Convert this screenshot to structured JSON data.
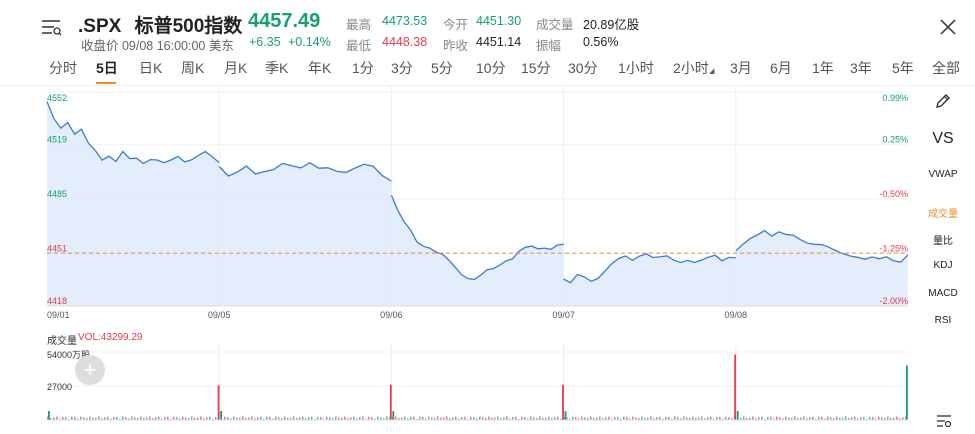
{
  "header": {
    "symbol": ".SPX",
    "name": "标普500指数",
    "price": "4457.49",
    "status": "收盘价 09/08 16:00:00 美东",
    "change": "+6.35",
    "change_pct": "+0.14%",
    "stats": {
      "high_label": "最高",
      "high": "4473.53",
      "open_label": "今开",
      "open": "4451.30",
      "volume_label": "成交量",
      "volume": "20.89亿股",
      "low_label": "最低",
      "low": "4448.38",
      "prev_close_label": "昨收",
      "prev_close": "4451.14",
      "amplitude_label": "振幅",
      "amplitude": "0.56%"
    }
  },
  "tabs": [
    "分时",
    "5日",
    "日K",
    "周K",
    "月K",
    "季K",
    "年K",
    "1分",
    "3分",
    "5分",
    "10分",
    "15分",
    "30分",
    "1小时",
    "2小时",
    "3月",
    "6月",
    "1年",
    "3年",
    "5年",
    "全部"
  ],
  "active_tab": "5日",
  "side_tools": {
    "edit_icon": "pencil-icon",
    "vs": "VS",
    "vwap": "VWAP",
    "volume": "成交量",
    "volume_ratio": "量比",
    "kdj": "KDJ",
    "macd": "MACD",
    "rsi": "RSI",
    "settings_icon": "list-settings-icon"
  },
  "volume_panel": {
    "title": "成交量",
    "vol_label": "VOL:43299.29",
    "axis_max": "54000万股",
    "axis_mid": "27000"
  },
  "colors": {
    "up": "#14a26b",
    "down": "#e6394a",
    "line": "#3a7bd5",
    "fill": "#dce8fb",
    "accent": "#f08a2a"
  },
  "chart_data": {
    "type": "area",
    "dates": [
      "09/01",
      "09/05",
      "09/06",
      "09/07",
      "09/08"
    ],
    "y_left_ticks": [
      "4552",
      "4519",
      "4485",
      "4451",
      "4418"
    ],
    "y_right_ticks": [
      "0.99%",
      "0.25%",
      "-0.50%",
      "-1.25%",
      "-2.00%"
    ],
    "ylim": [
      4418,
      4552
    ],
    "prev_close": 4451.14,
    "series": [
      {
        "values": [
          [
            4546,
            4536,
            4530,
            4533,
            4525,
            4528,
            4520,
            4516,
            4510,
            4512,
            4508,
            4514,
            4510,
            4511,
            4508,
            4510,
            4509,
            4507,
            4509,
            4512,
            4509,
            4510,
            4512,
            4514,
            4511,
            4508
          ],
          [
            4506,
            4500,
            4502,
            4505,
            4500,
            4502,
            4504,
            4508,
            4506,
            4504,
            4507,
            4504,
            4505,
            4503,
            4502,
            4504,
            4506,
            4505,
            4500,
            4497
          ],
          [
            4488,
            4478,
            4470,
            4465,
            4458,
            4456,
            4455,
            4452,
            4450,
            4446,
            4442,
            4438,
            4436,
            4435,
            4437,
            4440,
            4441,
            4444,
            4447,
            4448,
            4452,
            4454,
            4455,
            4454,
            4455,
            4454,
            4456,
            4456
          ],
          [
            4435,
            4432,
            4437,
            4436,
            4434,
            4436,
            4440,
            4444,
            4447,
            4449,
            4447,
            4450,
            4451,
            4448,
            4448,
            4449,
            4447,
            4446,
            4447,
            4445,
            4446,
            4448,
            4450,
            4447,
            4449,
            4448
          ],
          [
            4452,
            4456,
            4460,
            4463,
            4466,
            4462,
            4464,
            4462,
            4462,
            4460,
            4458,
            4457,
            4456,
            4454,
            4452,
            4451,
            4450,
            4449,
            4447,
            4448,
            4447,
            4449,
            4447,
            4446,
            4450
          ]
        ]
      }
    ],
    "volume_ylim": [
      0,
      54000
    ],
    "volume_spikes": [
      {
        "day": 1,
        "value": 27500,
        "color": "down"
      },
      {
        "day": 2,
        "value": 28000,
        "color": "down"
      },
      {
        "day": 3,
        "value": 28000,
        "color": "down"
      },
      {
        "day": 4,
        "value": 52000,
        "color": "down"
      },
      {
        "day": 5,
        "value": 43299,
        "color": "up"
      }
    ]
  }
}
